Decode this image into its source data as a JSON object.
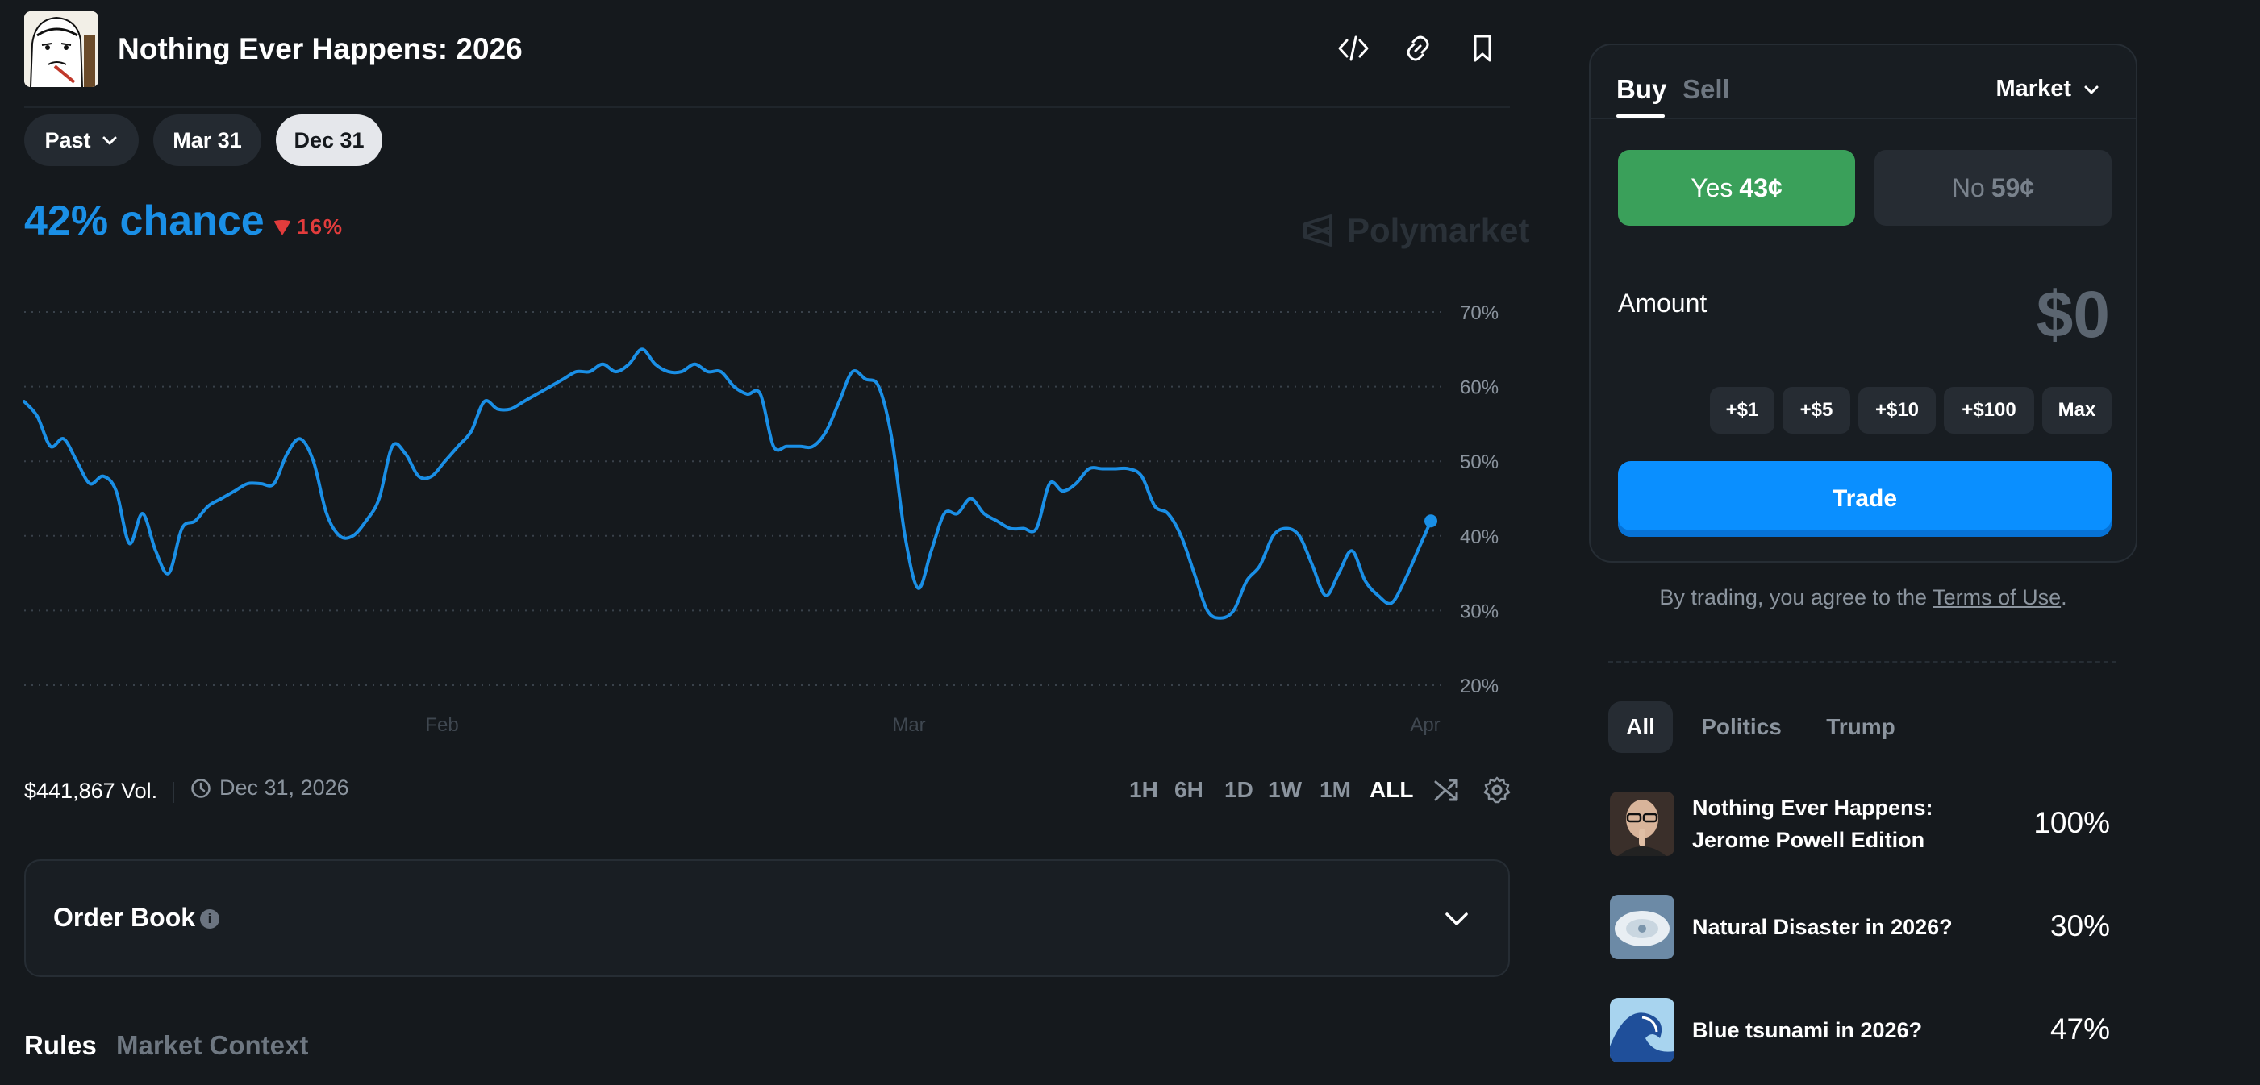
{
  "header": {
    "title": "Nothing Ever Happens: 2026",
    "icons": [
      "embed-icon",
      "link-icon",
      "bookmark-icon"
    ]
  },
  "dates": {
    "filter_label": "Past",
    "options": [
      "Mar 31",
      "Dec 31"
    ],
    "selected": "Dec 31"
  },
  "market": {
    "chance": "42% chance",
    "change": "16%",
    "change_direction": "down",
    "watermark": "Polymarket",
    "volume": "$441,867 Vol.",
    "end_date": "Dec 31, 2026"
  },
  "chart_data": {
    "type": "line",
    "title": "",
    "xlabel": "",
    "ylabel": "",
    "x_tick_labels": [
      "Feb",
      "Mar",
      "Apr"
    ],
    "y_tick_labels": [
      "70%",
      "60%",
      "50%",
      "40%",
      "30%",
      "20%"
    ],
    "ylim": [
      20,
      70
    ],
    "grid": true,
    "color": "#1a8fe6",
    "series": [
      {
        "values": [
          58,
          56,
          52,
          53,
          50,
          47,
          48,
          46,
          39,
          43,
          38,
          35,
          41,
          42,
          44,
          45,
          46,
          47,
          47,
          47,
          51,
          53,
          50,
          43,
          40,
          40,
          42,
          45,
          52,
          51,
          48,
          48,
          50,
          52,
          54,
          58,
          57,
          57,
          58,
          59,
          60,
          61,
          62,
          62,
          63,
          62,
          63,
          65,
          63,
          62,
          62,
          63,
          62,
          62,
          60,
          59,
          59,
          52,
          52,
          52,
          52,
          54,
          58,
          62,
          61,
          60,
          53,
          40,
          33,
          38,
          43,
          43,
          45,
          43,
          42,
          41,
          41,
          41,
          47,
          46,
          47,
          49,
          49,
          49,
          49,
          48,
          44,
          43,
          40,
          35,
          30,
          29,
          30,
          34,
          36,
          40,
          41,
          40,
          36,
          32,
          35,
          38,
          34,
          32,
          31,
          34,
          38,
          42
        ]
      }
    ]
  },
  "ranges": {
    "items": [
      "1H",
      "6H",
      "1D",
      "1W",
      "1M",
      "ALL"
    ],
    "selected": "ALL"
  },
  "order_book": {
    "title": "Order Book"
  },
  "tabs": {
    "rules": "Rules",
    "context": "Market Context"
  },
  "trade": {
    "buy_label": "Buy",
    "sell_label": "Sell",
    "order_type": "Market",
    "yes_label": "Yes",
    "yes_price": "43¢",
    "no_label": "No",
    "no_price": "59¢",
    "amount_label": "Amount",
    "amount_value": "$0",
    "quick_amounts": [
      "+$1",
      "+$5",
      "+$10",
      "+$100",
      "Max"
    ],
    "trade_button": "Trade",
    "terms_prefix": "By trading, you agree to the ",
    "terms_link": "Terms of Use",
    "terms_suffix": "."
  },
  "related": {
    "tabs": [
      "All",
      "Politics",
      "Trump"
    ],
    "selected_tab": "All",
    "items": [
      {
        "title": "Nothing Ever Happens: Jerome Powell Edition",
        "percent": "100%"
      },
      {
        "title": "Natural Disaster in 2026?",
        "percent": "30%"
      },
      {
        "title": "Blue tsunami in 2026?",
        "percent": "47%"
      }
    ]
  },
  "colors": {
    "background": "#15191d",
    "accent_blue": "#1a8fe6",
    "yes_green": "#3aa05a",
    "down_red": "#e23c3c",
    "trade_blue": "#0a8fff"
  }
}
